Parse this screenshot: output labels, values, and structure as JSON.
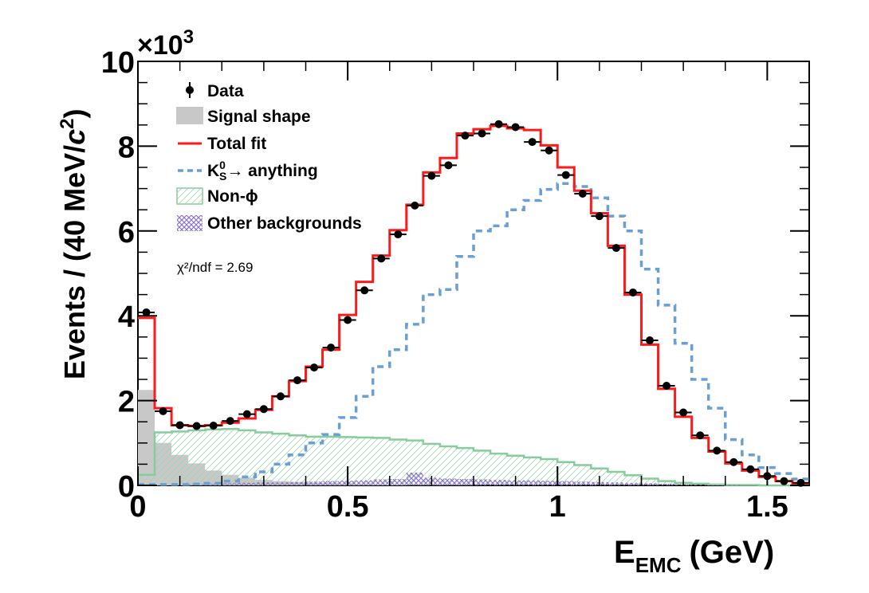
{
  "chart_data": {
    "type": "histogram",
    "xlabel_main": "E",
    "xlabel_sub": "EMC",
    "xlabel_unit": "(GeV)",
    "ylabel_prefix": "Events / (40 MeV/",
    "ylabel_c": "c",
    "ylabel_exp": "2",
    "ylabel_suffix": ")",
    "y_exponent_base": "×10",
    "y_exponent_power": "3",
    "xlim": [
      0,
      1.6
    ],
    "ylim": [
      0,
      10
    ],
    "x_ticks": [
      {
        "value": 0,
        "label": "0"
      },
      {
        "value": 0.5,
        "label": "0.5"
      },
      {
        "value": 1,
        "label": "1"
      },
      {
        "value": 1.5,
        "label": "1.5"
      }
    ],
    "y_ticks": [
      {
        "value": 0,
        "label": "0"
      },
      {
        "value": 2,
        "label": "2"
      },
      {
        "value": 4,
        "label": "4"
      },
      {
        "value": 6,
        "label": "6"
      },
      {
        "value": 8,
        "label": "8"
      },
      {
        "value": 10,
        "label": "10"
      }
    ],
    "bin_width": 0.04,
    "legend": {
      "data": "Data",
      "signal": "Signal shape",
      "total": "Total fit",
      "ks_prefix": "K",
      "ks_sup": "0",
      "ks_sub": "S",
      "ks_suffix": "→ anything",
      "nonphi": "Non-ϕ",
      "other": "Other backgrounds"
    },
    "chi2_label": "χ²/ndf =  2.69",
    "colors": {
      "total": "#ff1a1a",
      "ks": "#6a9fd1",
      "nonphi": "#86cc9c",
      "other": "#8a76c4",
      "signal": "#c8c8c8",
      "data": "#000000"
    },
    "series": {
      "data": [
        4.08,
        1.75,
        1.42,
        1.4,
        1.41,
        1.52,
        1.68,
        1.8,
        2.1,
        2.48,
        2.78,
        3.25,
        3.9,
        4.6,
        5.35,
        5.92,
        6.6,
        7.3,
        7.55,
        8.25,
        8.3,
        8.52,
        8.45,
        8.1,
        7.9,
        7.32,
        6.88,
        6.35,
        5.6,
        4.55,
        3.42,
        2.35,
        1.72,
        1.18,
        0.82,
        0.55,
        0.38,
        0.22,
        0.1,
        0.06
      ],
      "total": [
        3.95,
        1.82,
        1.42,
        1.4,
        1.42,
        1.48,
        1.58,
        1.78,
        2.1,
        2.46,
        2.8,
        3.2,
        4.02,
        4.8,
        5.42,
        6.02,
        6.62,
        7.38,
        7.72,
        8.3,
        8.4,
        8.48,
        8.42,
        8.38,
        8.02,
        7.5,
        6.95,
        6.42,
        5.65,
        4.5,
        3.32,
        2.28,
        1.62,
        1.12,
        0.8,
        0.52,
        0.35,
        0.2,
        0.1,
        0.05
      ],
      "ks": [
        0.02,
        0.02,
        0.02,
        0.03,
        0.05,
        0.1,
        0.2,
        0.32,
        0.5,
        0.72,
        1.0,
        1.2,
        1.6,
        2.1,
        2.8,
        3.2,
        3.8,
        4.5,
        4.62,
        5.4,
        6.0,
        6.12,
        6.5,
        6.72,
        6.98,
        7.12,
        7.05,
        6.78,
        6.35,
        6.0,
        5.1,
        4.25,
        3.35,
        2.5,
        1.82,
        1.08,
        0.72,
        0.42,
        0.28,
        0.15
      ],
      "nonphi": [
        0.25,
        1.25,
        1.27,
        1.3,
        1.32,
        1.33,
        1.3,
        1.25,
        1.22,
        1.18,
        1.15,
        1.15,
        1.14,
        1.13,
        1.12,
        1.08,
        1.06,
        0.98,
        0.92,
        0.88,
        0.82,
        0.75,
        0.7,
        0.66,
        0.62,
        0.55,
        0.48,
        0.4,
        0.32,
        0.24,
        0.16,
        0.1,
        0.06,
        0.04,
        0.02,
        0.01,
        0.01,
        0.0,
        0.0,
        0.0
      ],
      "other": [
        0.0,
        0.01,
        0.02,
        0.03,
        0.04,
        0.05,
        0.06,
        0.07,
        0.07,
        0.08,
        0.09,
        0.1,
        0.11,
        0.12,
        0.14,
        0.15,
        0.3,
        0.18,
        0.16,
        0.15,
        0.14,
        0.13,
        0.12,
        0.12,
        0.11,
        0.1,
        0.09,
        0.08,
        0.07,
        0.06,
        0.05,
        0.04,
        0.03,
        0.02,
        0.01,
        0.01,
        0.0,
        0.0,
        0.0,
        0.0
      ],
      "signal": [
        2.25,
        1.0,
        0.72,
        0.52,
        0.35,
        0.25,
        0.18,
        0.13,
        0.1,
        0.08,
        0.06,
        0.05,
        0.04,
        0.03,
        0.02,
        0.02,
        0.01,
        0.01,
        0.01,
        0.01,
        0.0,
        0.0,
        0.0,
        0.0,
        0.0,
        0.0,
        0.0,
        0.0,
        0.0,
        0.0,
        0.0,
        0.0,
        0.0,
        0.0,
        0.0,
        0.0,
        0.0,
        0.0,
        0.0,
        0.0
      ]
    }
  }
}
